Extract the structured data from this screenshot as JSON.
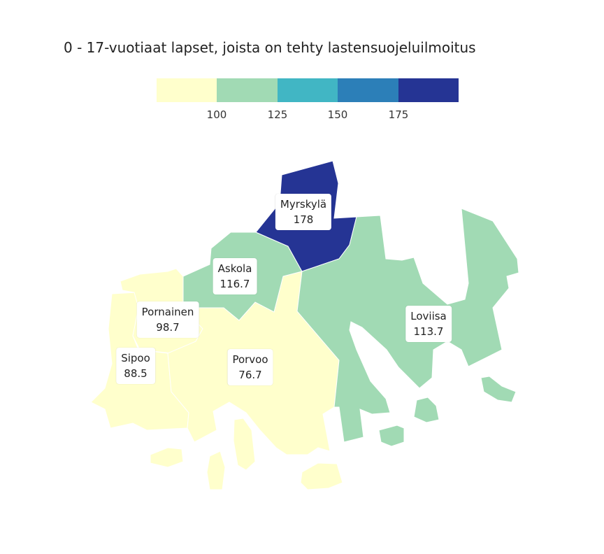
{
  "title": "0 - 17-vuotiaat lapset, joista on tehty lastensuojeluilmoitus",
  "legend": {
    "colors": [
      "#ffffcc",
      "#a1dab4",
      "#41b6c4",
      "#2c7fb8",
      "#253494"
    ],
    "ticks": [
      "100",
      "125",
      "150",
      "175"
    ]
  },
  "regions": [
    {
      "name": "Myrskylä",
      "value": "178",
      "color": "#253494"
    },
    {
      "name": "Askola",
      "value": "116.7",
      "color": "#a1dab4"
    },
    {
      "name": "Pornainen",
      "value": "98.7",
      "color": "#ffffcc"
    },
    {
      "name": "Loviisa",
      "value": "113.7",
      "color": "#a1dab4"
    },
    {
      "name": "Sipoo",
      "value": "88.5",
      "color": "#ffffcc"
    },
    {
      "name": "Porvoo",
      "value": "76.7",
      "color": "#ffffcc"
    }
  ]
}
